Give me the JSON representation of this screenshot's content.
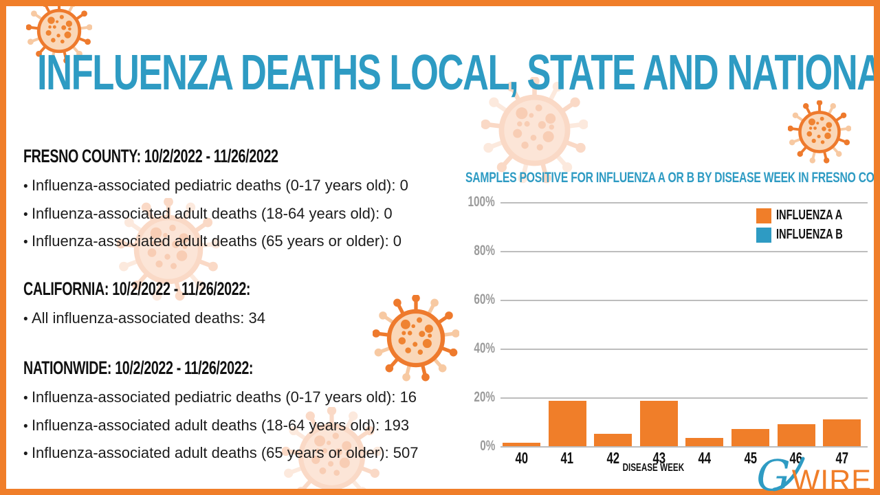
{
  "page": {
    "title": "INFLUENZA DEATHS LOCAL, STATE AND NATIONAL"
  },
  "sections": [
    {
      "heading": "FRESNO COUNTY: 10/2/2022 - 11/26/2022",
      "bullets": [
        "Influenza-associated pediatric deaths (0-17 years old): 0",
        "Influenza-associated adult deaths (18-64 years old): 0",
        "Influenza-associated adult deaths (65 years or older): 0"
      ]
    },
    {
      "heading": "CALIFORNIA: 10/2/2022 - 11/26/2022:",
      "bullets": [
        "All influenza-associated deaths: 34"
      ]
    },
    {
      "heading": "NATIONWIDE: 10/2/2022 - 11/26/2022:",
      "bullets": [
        "Influenza-associated pediatric deaths (0-17 years old): 16",
        "Influenza-associated adult deaths (18-64 years old): 193",
        "Influenza-associated adult deaths (65 years or older): 507"
      ]
    }
  ],
  "chart_data": {
    "type": "bar",
    "title": "SAMPLES POSITIVE FOR INFLUENZA A OR B BY DISEASE WEEK IN FRESNO COUNTY",
    "xlabel": "DISEASE WEEK",
    "ylabel": "",
    "categories": [
      "40",
      "41",
      "42",
      "43",
      "44",
      "45",
      "46",
      "47"
    ],
    "series": [
      {
        "name": "INFLUENZA A",
        "color": "#F07E29",
        "values": [
          1.5,
          18.5,
          5,
          18.5,
          3.5,
          7,
          9,
          11
        ]
      },
      {
        "name": "INFLUENZA B",
        "color": "#2E9BC3",
        "values": [
          0,
          0,
          0,
          0,
          0,
          0,
          0,
          0
        ]
      }
    ],
    "ylim": [
      0,
      100
    ],
    "yticks": [
      "0%",
      "20%",
      "40%",
      "60%",
      "80%",
      "100%"
    ],
    "grid": true,
    "legend_position": "top-right"
  },
  "logo": {
    "g": "G",
    "wire": "WIRE"
  },
  "theme": {
    "accent_orange": "#F07E29",
    "accent_teal": "#2E9BC3",
    "text_black": "#161616",
    "axis_gray": "#9B9B9B",
    "grid_gray": "#BDBDBD",
    "virus_pale": "#FCE5D7"
  }
}
